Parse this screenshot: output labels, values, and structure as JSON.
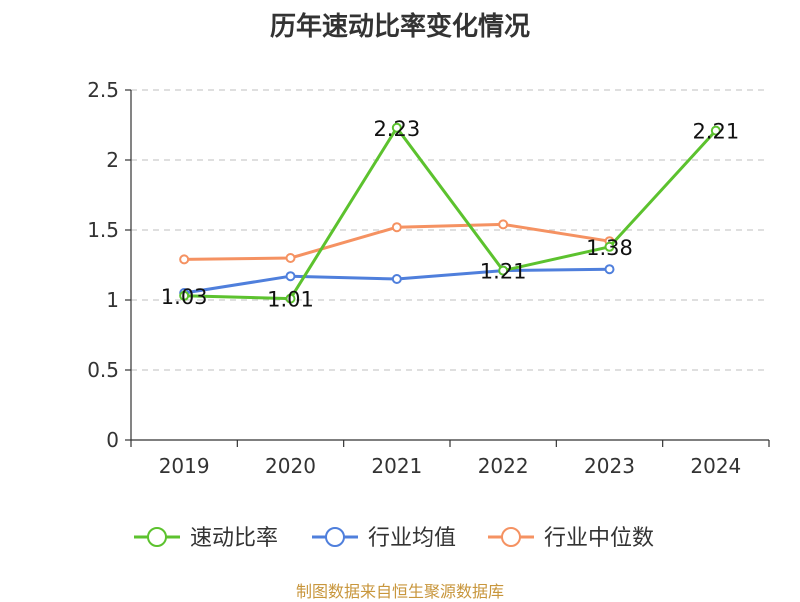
{
  "chart_data": {
    "type": "line",
    "title": "历年速动比率变化情况",
    "categories": [
      "2019",
      "2020",
      "2021",
      "2022",
      "2023",
      "2024"
    ],
    "ylim": [
      0,
      2.5
    ],
    "yticks": [
      "0",
      "0.5",
      "1",
      "1.5",
      "2",
      "2.5"
    ],
    "grid": true,
    "legend_position": "bottom",
    "series": [
      {
        "name": "速动比率",
        "color": "#5cc22e",
        "values": [
          1.03,
          1.01,
          2.23,
          1.21,
          1.38,
          2.21
        ],
        "labels": [
          "1.03",
          "1.01",
          "2.23",
          "1.21",
          "1.38",
          "2.21"
        ]
      },
      {
        "name": "行业均值",
        "color": "#4f7fdc",
        "values": [
          1.05,
          1.17,
          1.15,
          1.21,
          1.22,
          null
        ]
      },
      {
        "name": "行业中位数",
        "color": "#f59262",
        "values": [
          1.29,
          1.3,
          1.52,
          1.54,
          1.42,
          null
        ]
      }
    ]
  },
  "footer": {
    "source": "制图数据来自恒生聚源数据库"
  }
}
